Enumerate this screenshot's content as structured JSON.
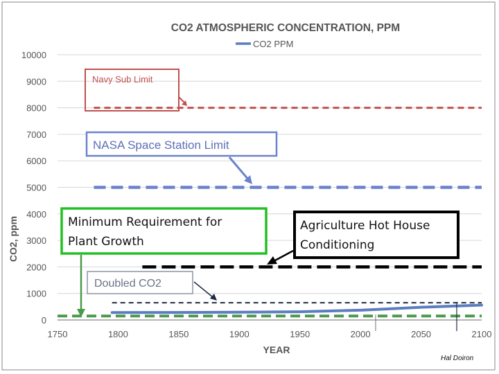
{
  "chart_data": {
    "type": "line",
    "title": "CO2  ATMOSPHERIC CONCENTRATION, PPM",
    "legend": {
      "label": "CO2 PPM",
      "color": "#5b7cbf",
      "placement": "top-center"
    },
    "xlabel": "YEAR",
    "ylabel": "CO2, ppm",
    "xlim": [
      1750,
      2100
    ],
    "ylim": [
      0,
      10000
    ],
    "x_ticks": [
      1750,
      1800,
      1850,
      1900,
      1950,
      2000,
      2050,
      2100
    ],
    "y_ticks": [
      0,
      1000,
      2000,
      3000,
      4000,
      5000,
      6000,
      7000,
      8000,
      9000,
      10000
    ],
    "grid": true,
    "series": [
      {
        "name": "CO2 PPM",
        "color": "#5b7cbf",
        "x": [
          1795,
          1850,
          1900,
          1950,
          2000,
          2020,
          2050,
          2100
        ],
        "y": [
          280,
          285,
          295,
          310,
          370,
          410,
          480,
          560
        ]
      }
    ],
    "reference_lines": [
      {
        "name": "Navy Sub Limit",
        "value": 8000,
        "x_start": 1780,
        "x_end": 2100,
        "color": "#c0504d",
        "style": "dashed"
      },
      {
        "name": "NASA Space Station Limit",
        "value": 5000,
        "x_start": 1780,
        "x_end": 2100,
        "color": "#6b82cc",
        "style": "dashed"
      },
      {
        "name": "Agriculture Hot House Conditioning",
        "value": 2000,
        "x_start": 1820,
        "x_end": 2100,
        "color": "#000000",
        "style": "dashed"
      },
      {
        "name": "Doubled CO2",
        "value": 650,
        "x_start": 1795,
        "x_end": 2100,
        "color": "#1f2a44",
        "style": "dashed"
      },
      {
        "name": "Minimum Requirement for Plant Growth",
        "value": 150,
        "x_start": 1750,
        "x_end": 2100,
        "color": "#4a9a4a",
        "style": "dashed"
      }
    ],
    "annotations": {
      "navy": "Navy Sub Limit",
      "nasa": "NASA Space Station Limit",
      "plant": "Minimum Requirement for Plant Growth",
      "agri": "Agriculture Hot House Conditioning",
      "doubled": "Doubled CO2"
    }
  },
  "credit": "Hal Doiron"
}
